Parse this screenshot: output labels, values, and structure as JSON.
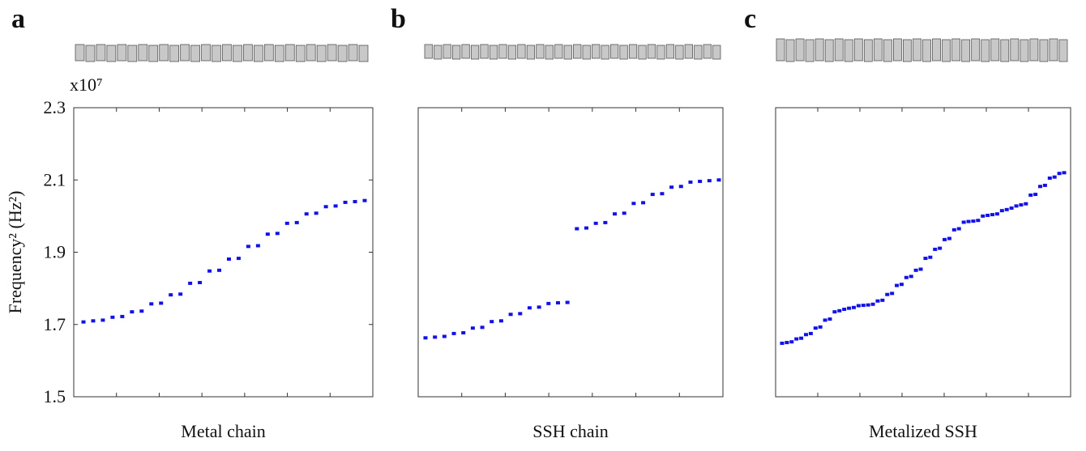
{
  "chart_data": [
    {
      "type": "scatter",
      "panel": "a",
      "xlabel": "Metal chain",
      "ylabel": "Frequency² (Hz²)",
      "multiplier": "x10⁷",
      "color": "#1212e6",
      "ylim": [
        1.5,
        2.3
      ],
      "yticks": [
        1.5,
        1.7,
        1.9,
        2.1,
        2.3
      ],
      "values": [
        1.707,
        1.71,
        1.712,
        1.72,
        1.722,
        1.735,
        1.737,
        1.757,
        1.759,
        1.782,
        1.784,
        1.814,
        1.816,
        1.848,
        1.85,
        1.881,
        1.883,
        1.916,
        1.918,
        1.95,
        1.952,
        1.98,
        1.982,
        2.006,
        2.008,
        2.026,
        2.028,
        2.038,
        2.04,
        2.043
      ]
    },
    {
      "type": "scatter",
      "panel": "b",
      "xlabel": "SSH chain",
      "color": "#1212e6",
      "ylim": [
        1.5,
        2.3
      ],
      "values": [
        1.663,
        1.665,
        1.667,
        1.675,
        1.677,
        1.69,
        1.692,
        1.708,
        1.71,
        1.728,
        1.73,
        1.746,
        1.748,
        1.758,
        1.76,
        1.761,
        1.965,
        1.967,
        1.98,
        1.982,
        2.006,
        2.008,
        2.035,
        2.037,
        2.06,
        2.062,
        2.08,
        2.082,
        2.094,
        2.096,
        2.098,
        2.1
      ]
    },
    {
      "type": "scatter",
      "panel": "c",
      "xlabel": "Metalized SSH",
      "color": "#1212e6",
      "ylim": [
        1.5,
        2.3
      ],
      "values": [
        1.648,
        1.65,
        1.652,
        1.66,
        1.662,
        1.672,
        1.675,
        1.69,
        1.693,
        1.712,
        1.715,
        1.735,
        1.738,
        1.742,
        1.745,
        1.747,
        1.752,
        1.753,
        1.754,
        1.756,
        1.765,
        1.767,
        1.783,
        1.786,
        1.808,
        1.811,
        1.83,
        1.833,
        1.85,
        1.853,
        1.883,
        1.886,
        1.908,
        1.911,
        1.935,
        1.938,
        1.962,
        1.965,
        1.983,
        1.985,
        1.986,
        1.988,
        2.0,
        2.002,
        2.004,
        2.006,
        2.015,
        2.018,
        2.022,
        2.028,
        2.031,
        2.034,
        2.058,
        2.06,
        2.082,
        2.085,
        2.105,
        2.108,
        2.118,
        2.12
      ]
    }
  ]
}
